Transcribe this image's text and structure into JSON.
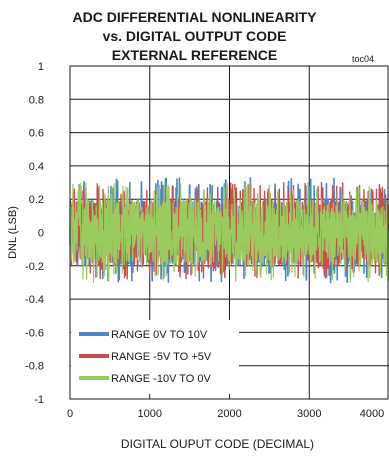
{
  "chart_data": {
    "type": "line",
    "title_lines": [
      "ADC DIFFERENTIAL NONLINEARITY",
      "vs. DIGITAL OUTPUT CODE",
      "EXTERNAL REFERENCE"
    ],
    "note": "toc04",
    "xlabel": "DIGITAL OUPUT CODE (DECIMAL)",
    "ylabel": "DNL (LSB)",
    "xlim": [
      0,
      4000
    ],
    "ylim": [
      -1,
      1
    ],
    "xticks": [
      "0",
      "1000",
      "2000",
      "3000",
      "4000"
    ],
    "yticks": [
      "1",
      "0.8",
      "0.6",
      "0.4",
      "0.2",
      "0",
      "-0.2",
      "-0.4",
      "-0.6",
      "-0.8",
      "-1"
    ],
    "grid": true,
    "legend_position": "bottom-left",
    "series": [
      {
        "name": "RANGE 0V TO 10V",
        "color": "#4a86c8",
        "typical_range": [
          -0.2,
          0.2
        ],
        "peak_range": [
          -0.3,
          0.33
        ]
      },
      {
        "name": "RANGE -5V TO +5V",
        "color": "#cc4b4b",
        "typical_range": [
          -0.2,
          0.2
        ],
        "peak_range": [
          -0.28,
          0.3
        ]
      },
      {
        "name": "RANGE -10V TO 0V",
        "color": "#9acb5f",
        "typical_range": [
          -0.2,
          0.2
        ],
        "peak_range": [
          -0.3,
          0.3
        ]
      }
    ]
  }
}
